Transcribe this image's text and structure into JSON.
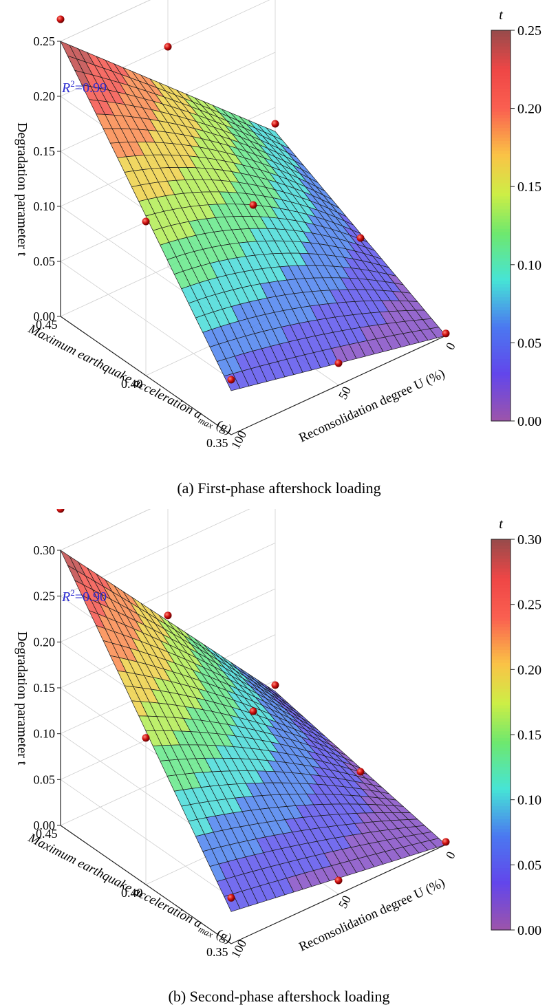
{
  "chart_data": [
    {
      "type": "surface3d",
      "caption": "(a) First-phase aftershock loading",
      "zlabel": "Degradation parameter t",
      "xlabel": "Reconsolidation degree U (%)",
      "ylabel_prefix": "Maximum earthquake acceleration ",
      "ylabel_symbol": "a",
      "ylabel_subscript": "max",
      "ylabel_unit": " (g)",
      "r2_symbol": "R",
      "r2_sup": "2",
      "r2_value": "=0.99",
      "colorbar_title": "t",
      "colorbar_range": [
        0,
        0.25
      ],
      "colorbar_ticks": [
        "0.00",
        "0.05",
        "0.10",
        "0.15",
        "0.20",
        "0.25"
      ],
      "z_ticks": [
        "0.00",
        "0.05",
        "0.10",
        "0.15",
        "0.20",
        "0.25"
      ],
      "x_ticks": [
        "0",
        "50",
        "100"
      ],
      "y_ticks": [
        "0.45",
        "0.40",
        "0.35"
      ],
      "x_range": [
        0,
        100
      ],
      "y_range": [
        0.35,
        0.45
      ],
      "z_range": [
        0,
        0.25
      ],
      "surface_corners": {
        "U0_a035": 0.0,
        "U0_a045": 0.078,
        "U100_a035": 0.04,
        "U100_a045": 0.25
      },
      "surface_center": 0.11,
      "points": [
        {
          "U": 100,
          "a": 0.45,
          "t": 0.27
        },
        {
          "U": 50,
          "a": 0.45,
          "t": 0.2
        },
        {
          "U": 0,
          "a": 0.45,
          "t": 0.085
        },
        {
          "U": 100,
          "a": 0.4,
          "t": 0.14
        },
        {
          "U": 50,
          "a": 0.4,
          "t": 0.11
        },
        {
          "U": 0,
          "a": 0.4,
          "t": 0.035
        },
        {
          "U": 100,
          "a": 0.35,
          "t": 0.05
        },
        {
          "U": 50,
          "a": 0.35,
          "t": 0.02
        },
        {
          "U": 0,
          "a": 0.35,
          "t": 0.002
        }
      ]
    },
    {
      "type": "surface3d",
      "caption": "(b) Second-phase aftershock loading",
      "zlabel": "Degradation parameter t",
      "xlabel": "Reconsolidation degree U (%)",
      "ylabel_prefix": "Maximum earthquake acceleration ",
      "ylabel_symbol": "a",
      "ylabel_subscript": "max",
      "ylabel_unit": " (g)",
      "r2_symbol": "R",
      "r2_sup": "2",
      "r2_value": "=0.90",
      "colorbar_title": "t",
      "colorbar_range": [
        0,
        0.3
      ],
      "colorbar_ticks": [
        "0.00",
        "0.05",
        "0.10",
        "0.15",
        "0.20",
        "0.25",
        "0.30"
      ],
      "z_ticks": [
        "0.00",
        "0.05",
        "0.10",
        "0.15",
        "0.20",
        "0.25",
        "0.30"
      ],
      "x_ticks": [
        "0",
        "50",
        "100"
      ],
      "y_ticks": [
        "0.45",
        "0.40",
        "0.35"
      ],
      "x_range": [
        0,
        100
      ],
      "y_range": [
        0.35,
        0.45
      ],
      "z_range": [
        0,
        0.3
      ],
      "surface_corners": {
        "U0_a035": 0.0,
        "U0_a045": 0.038,
        "U100_a035": 0.035,
        "U100_a045": 0.3
      },
      "surface_center": 0.105,
      "points": [
        {
          "U": 100,
          "a": 0.45,
          "t": 0.345
        },
        {
          "U": 50,
          "a": 0.45,
          "t": 0.175
        },
        {
          "U": 0,
          "a": 0.45,
          "t": 0.045
        },
        {
          "U": 100,
          "a": 0.4,
          "t": 0.16
        },
        {
          "U": 50,
          "a": 0.4,
          "t": 0.135
        },
        {
          "U": 0,
          "a": 0.4,
          "t": 0.015
        },
        {
          "U": 100,
          "a": 0.35,
          "t": 0.05
        },
        {
          "U": 50,
          "a": 0.35,
          "t": 0.015
        },
        {
          "U": 0,
          "a": 0.35,
          "t": 0.003
        }
      ]
    }
  ]
}
